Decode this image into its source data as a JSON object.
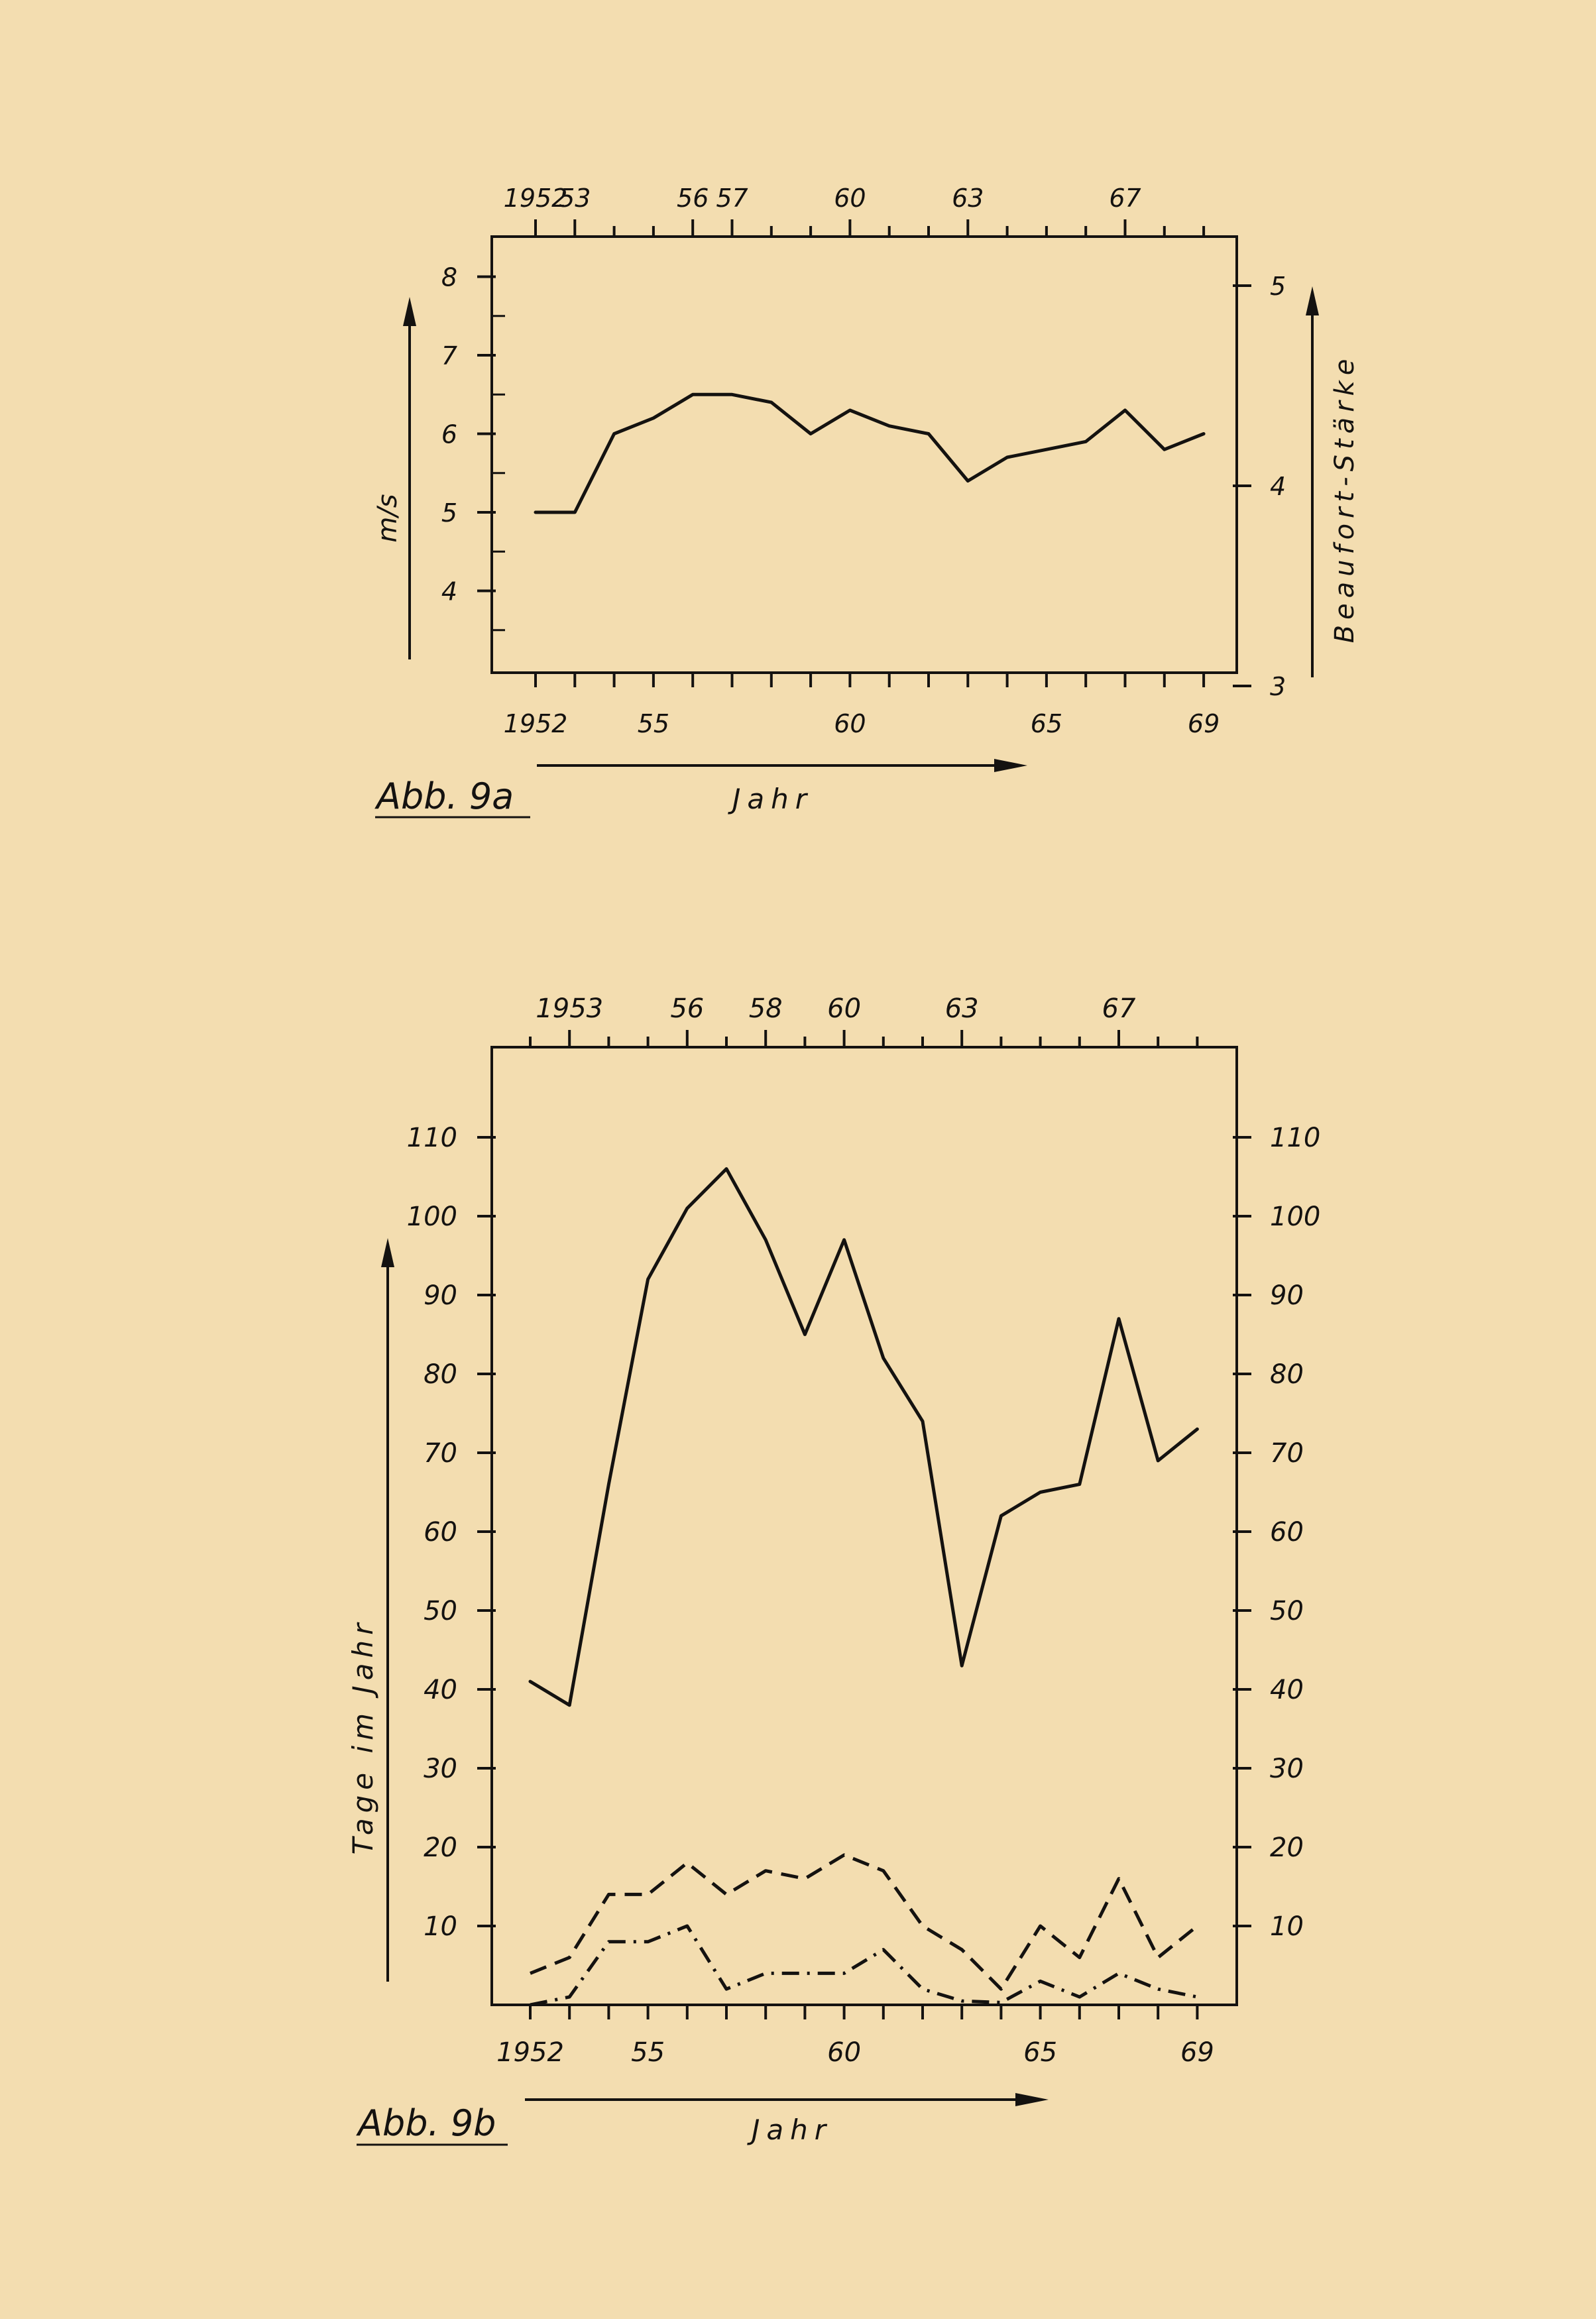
{
  "chart_data": [
    {
      "type": "line",
      "caption": "Abb. 9a",
      "xlabel": "Jahr",
      "ylabel": "m/s",
      "ylabel_right": "Beaufort-Stärke",
      "x_tick_labels_bottom": [
        "1952",
        "55",
        "60",
        "65",
        "69"
      ],
      "x_tick_labels_top": [
        "1952",
        "53",
        "56",
        "57",
        "60",
        "63",
        "67"
      ],
      "y_tick_labels_left": [
        "4",
        "5",
        "6",
        "7",
        "8"
      ],
      "y_tick_labels_right": [
        "3",
        "4",
        "5"
      ],
      "xlim": [
        1952,
        1969
      ],
      "ylim": [
        3,
        8.5
      ],
      "series": [
        {
          "x": [
            1952,
            1953,
            1954,
            1955,
            1956,
            1957,
            1958,
            1959,
            1960,
            1961,
            1962,
            1963,
            1964,
            1965,
            1966,
            1967,
            1968,
            1969
          ],
          "values": [
            5.0,
            5.0,
            6.0,
            6.2,
            6.5,
            6.5,
            6.4,
            6.0,
            6.3,
            6.1,
            6.0,
            5.4,
            5.7,
            5.8,
            5.9,
            6.3,
            5.8,
            6.0
          ]
        }
      ]
    },
    {
      "type": "line",
      "caption": "Abb. 9b",
      "xlabel": "Jahr",
      "ylabel": "Tage im Jahr",
      "x_tick_labels_bottom": [
        "1952",
        "55",
        "60",
        "65",
        "69"
      ],
      "x_tick_labels_top": [
        "1953",
        "56",
        "58",
        "60",
        "63",
        "67"
      ],
      "y_tick_labels_left": [
        "10",
        "20",
        "30",
        "40",
        "50",
        "60",
        "70",
        "80",
        "90",
        "100",
        "110"
      ],
      "y_tick_labels_right": [
        "10",
        "20",
        "30",
        "40",
        "50",
        "60",
        "70",
        "80",
        "90",
        "100",
        "110"
      ],
      "xlim": [
        1952,
        1969
      ],
      "ylim": [
        0,
        122
      ],
      "series": [
        {
          "style": "solid",
          "x": [
            1952,
            1953,
            1954,
            1955,
            1956,
            1957,
            1958,
            1959,
            1960,
            1961,
            1962,
            1963,
            1964,
            1965,
            1966,
            1967,
            1968,
            1969
          ],
          "values": [
            41,
            38,
            66,
            92,
            101,
            106,
            97,
            85,
            97,
            82,
            74,
            43,
            62,
            65,
            66,
            87,
            69,
            73
          ]
        },
        {
          "style": "dashed",
          "x": [
            1952,
            1953,
            1954,
            1955,
            1956,
            1957,
            1958,
            1959,
            1960,
            1961,
            1962,
            1963,
            1964,
            1965,
            1966,
            1967,
            1968,
            1969
          ],
          "values": [
            4,
            6,
            14,
            14,
            18,
            14,
            17,
            16,
            19,
            17,
            10,
            7,
            2,
            10,
            6,
            16,
            6,
            10
          ]
        },
        {
          "style": "dash-dot",
          "x": [
            1952,
            1953,
            1954,
            1955,
            1956,
            1957,
            1958,
            1959,
            1960,
            1961,
            1962,
            1963,
            1964,
            1965,
            1966,
            1967,
            1968,
            1969
          ],
          "values": [
            0,
            1,
            8,
            8,
            10,
            2,
            4,
            4,
            4,
            7,
            2,
            0.5,
            0.3,
            3,
            1,
            4,
            2,
            1
          ]
        }
      ]
    }
  ]
}
